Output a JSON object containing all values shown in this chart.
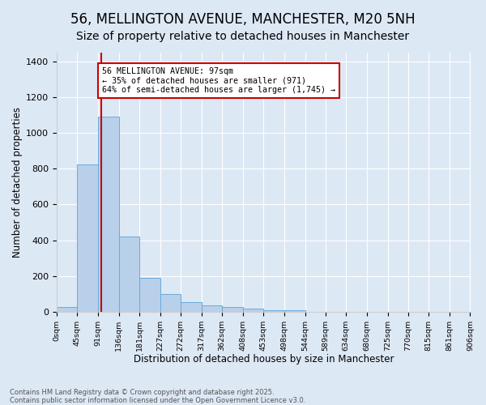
{
  "title": "56, MELLINGTON AVENUE, MANCHESTER, M20 5NH",
  "subtitle": "Size of property relative to detached houses in Manchester",
  "xlabel": "Distribution of detached houses by size in Manchester",
  "ylabel": "Number of detached properties",
  "bin_edges": [
    0,
    45,
    91,
    136,
    181,
    227,
    272,
    317,
    362,
    408,
    453,
    498,
    544,
    589,
    634,
    680,
    725,
    770,
    815,
    861,
    906
  ],
  "bin_values": [
    25,
    825,
    1090,
    420,
    190,
    100,
    55,
    35,
    25,
    15,
    10,
    8,
    0,
    0,
    0,
    0,
    0,
    0,
    0,
    0
  ],
  "bar_color": "#b8d0ea",
  "bar_edge_color": "#6aabdb",
  "vline_x": 97,
  "vline_color": "#cc0000",
  "annotation_text": "56 MELLINGTON AVENUE: 97sqm\n← 35% of detached houses are smaller (971)\n64% of semi-detached houses are larger (1,745) →",
  "annotation_box_facecolor": "#ffffff",
  "annotation_box_edgecolor": "#cc0000",
  "ylim": [
    0,
    1450
  ],
  "background_color": "#dde8f5",
  "plot_background_color": "#dde8f5",
  "grid_color": "#ffffff",
  "footer_line1": "Contains HM Land Registry data © Crown copyright and database right 2025.",
  "footer_line2": "Contains public sector information licensed under the Open Government Licence v3.0.",
  "title_fontsize": 12,
  "subtitle_fontsize": 10
}
